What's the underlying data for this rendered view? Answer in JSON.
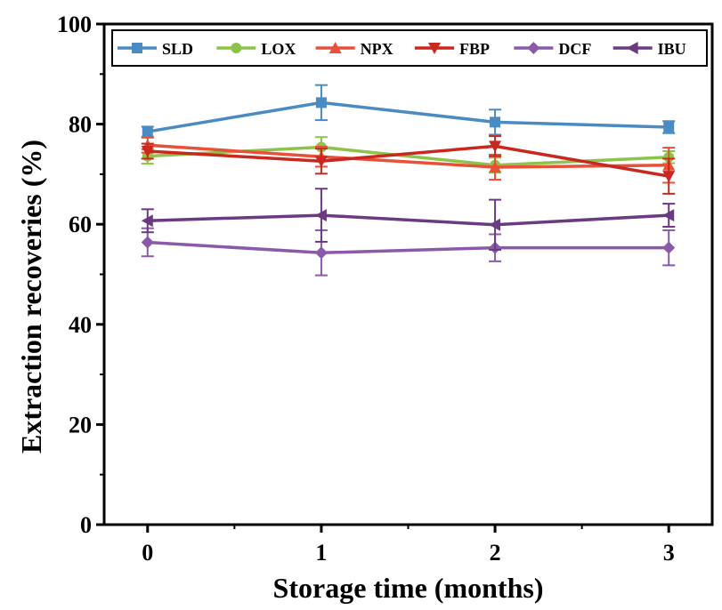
{
  "chart_data": {
    "type": "line",
    "xlabel": "Storage time (months)",
    "ylabel": "Extraction recoveries (%)",
    "x": [
      0,
      1,
      2,
      3
    ],
    "xticks": [
      "0",
      "1",
      "2",
      "3"
    ],
    "xlim": [
      -0.25,
      3.25
    ],
    "yticks": [
      "0",
      "20",
      "40",
      "60",
      "80",
      "100"
    ],
    "ylim": [
      0,
      100
    ],
    "grid": false,
    "legend_position": "top",
    "series": [
      {
        "name": "SLD",
        "color": "#4a8bc2",
        "marker": "square",
        "values": [
          78.5,
          84.3,
          80.4,
          79.4
        ],
        "errors": [
          1.0,
          3.5,
          2.5,
          1.2
        ]
      },
      {
        "name": "LOX",
        "color": "#8dc34a",
        "marker": "circle",
        "values": [
          73.6,
          75.4,
          71.8,
          73.4
        ],
        "errors": [
          1.5,
          2.0,
          1.5,
          1.2
        ]
      },
      {
        "name": "NPX",
        "color": "#e8503a",
        "marker": "triangle-up",
        "values": [
          75.8,
          73.5,
          71.4,
          71.8
        ],
        "errors": [
          1.5,
          2.0,
          2.5,
          3.5
        ]
      },
      {
        "name": "FBP",
        "color": "#c8281e",
        "marker": "triangle-down",
        "values": [
          74.6,
          72.6,
          75.6,
          69.6
        ],
        "errors": [
          1.5,
          2.5,
          2.0,
          3.5
        ]
      },
      {
        "name": "DCF",
        "color": "#8a5aa8",
        "marker": "diamond",
        "values": [
          56.4,
          54.3,
          55.3,
          55.3
        ],
        "errors": [
          2.8,
          4.5,
          2.7,
          3.5
        ]
      },
      {
        "name": "IBU",
        "color": "#6b3a80",
        "marker": "triangle-left",
        "values": [
          60.7,
          61.8,
          59.9,
          61.8
        ],
        "errors": [
          2.3,
          5.3,
          5.0,
          2.3
        ]
      }
    ]
  }
}
